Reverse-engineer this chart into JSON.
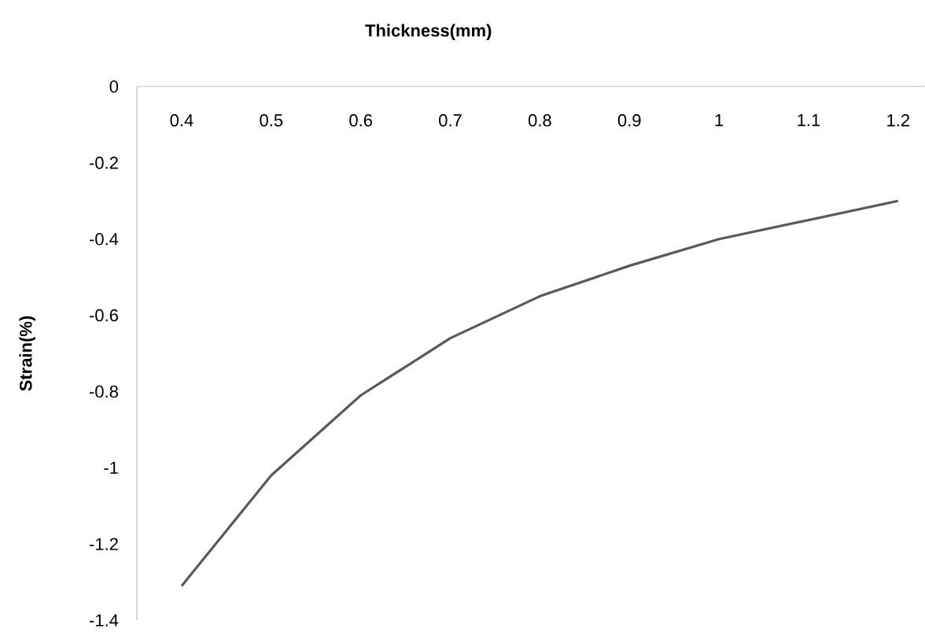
{
  "chart_data": {
    "type": "line",
    "xlabel": "**Thickness(mm)**",
    "ylabel": "**Strain(%)**",
    "categories": [
      "0.4",
      "0.5",
      "0.6",
      "0.7",
      "0.8",
      "0.9",
      "1",
      "1.1",
      "1.2"
    ],
    "series": [
      {
        "color": "#595959",
        "values": [
          -1.31,
          -1.02,
          -0.81,
          -0.66,
          -0.55,
          -0.47,
          -0.4,
          -0.35,
          -0.3
        ]
      }
    ],
    "ylim": [
      -1.4,
      0
    ],
    "yticks": [
      0,
      -0.2,
      -0.4,
      -0.6,
      -0.8,
      -1,
      -1.2,
      -1.4
    ],
    "grid": false,
    "marker": "none",
    "line_style": "solid"
  }
}
